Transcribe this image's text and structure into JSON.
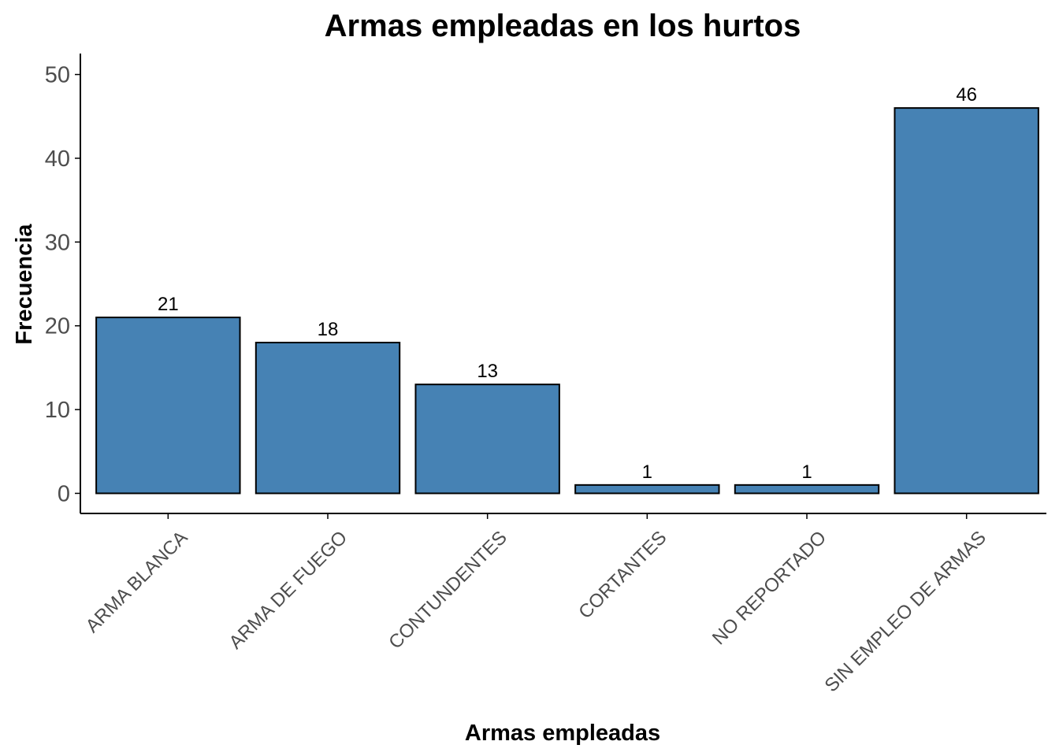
{
  "chart_data": {
    "type": "bar",
    "title": "Armas empleadas en los hurtos",
    "xlabel": "Armas empleadas",
    "ylabel": "Frecuencia",
    "categories": [
      "ARMA BLANCA",
      "ARMA DE FUEGO",
      "CONTUNDENTES",
      "CORTANTES",
      "NO REPORTADO",
      "SIN EMPLEO DE ARMAS"
    ],
    "values": [
      21,
      18,
      13,
      1,
      1,
      46
    ],
    "data_labels": [
      "21",
      "18",
      "13",
      "1",
      "1",
      "46"
    ],
    "yticks": [
      0,
      10,
      20,
      30,
      40,
      50
    ],
    "ytick_labels": [
      "0",
      "10",
      "20",
      "30",
      "40",
      "50"
    ],
    "ylim": [
      -2.4,
      52.5
    ],
    "grid": false,
    "legend": "none",
    "colors": {
      "bar_fill": "#4682b4",
      "bar_stroke": "#000000",
      "axis": "#000000",
      "tick_text": "#4d4d4d"
    }
  }
}
